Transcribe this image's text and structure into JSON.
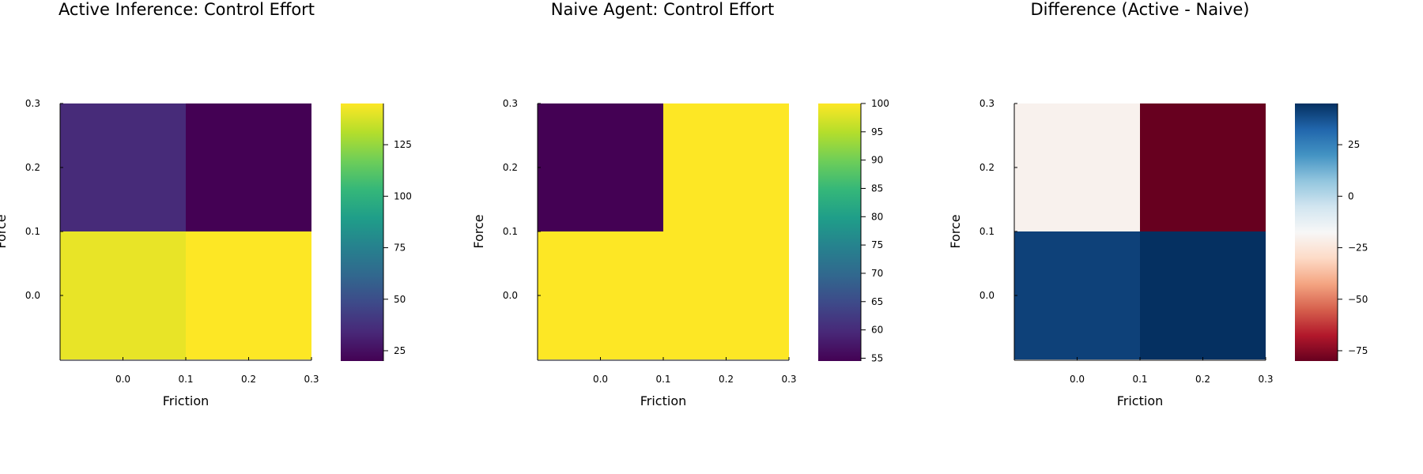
{
  "chart_data": [
    {
      "type": "heatmap",
      "title": "Active Inference: Control Effort",
      "xlabel": "Friction",
      "ylabel": "Force",
      "x_categories": [
        0.0,
        0.2
      ],
      "y_categories": [
        0.0,
        0.2
      ],
      "x_ticks": [
        "0.0",
        "0.1",
        "0.2",
        "0.3"
      ],
      "y_ticks": [
        "0.0",
        "0.1",
        "0.2",
        "0.3"
      ],
      "xlim": [
        -0.1,
        0.3
      ],
      "ylim": [
        -0.1,
        0.3
      ],
      "values": [
        [
          141,
          145
        ],
        [
          35,
          20
        ]
      ],
      "colormap": "viridis",
      "colorbar_range": [
        20,
        145
      ],
      "colorbar_ticks": [
        "25",
        "50",
        "75",
        "100",
        "125"
      ],
      "colorbar_tick_values": [
        25,
        50,
        75,
        100,
        125
      ]
    },
    {
      "type": "heatmap",
      "title": "Naive Agent: Control Effort",
      "xlabel": "Friction",
      "ylabel": "Force",
      "x_categories": [
        0.0,
        0.2
      ],
      "y_categories": [
        0.0,
        0.2
      ],
      "x_ticks": [
        "0.0",
        "0.1",
        "0.2",
        "0.3"
      ],
      "y_ticks": [
        "0.0",
        "0.1",
        "0.2",
        "0.3"
      ],
      "xlim": [
        -0.1,
        0.3
      ],
      "ylim": [
        -0.1,
        0.3
      ],
      "values": [
        [
          100,
          100
        ],
        [
          54.5,
          100
        ]
      ],
      "colormap": "viridis",
      "colorbar_range": [
        54.5,
        100
      ],
      "colorbar_ticks": [
        "55",
        "60",
        "65",
        "70",
        "75",
        "80",
        "85",
        "90",
        "95",
        "100"
      ],
      "colorbar_tick_values": [
        55,
        60,
        65,
        70,
        75,
        80,
        85,
        90,
        95,
        100
      ]
    },
    {
      "type": "heatmap",
      "title": "Difference (Active - Naive)",
      "xlabel": "Friction",
      "ylabel": "Force",
      "x_categories": [
        0.0,
        0.2
      ],
      "y_categories": [
        0.0,
        0.2
      ],
      "x_ticks": [
        "0.0",
        "0.1",
        "0.2",
        "0.3"
      ],
      "y_ticks": [
        "0.0",
        "0.1",
        "0.2",
        "0.3"
      ],
      "xlim": [
        -0.1,
        0.3
      ],
      "ylim": [
        -0.1,
        0.3
      ],
      "values": [
        [
          41,
          45
        ],
        [
          -20,
          -80
        ]
      ],
      "colormap": "RdBu",
      "colorbar_range": [
        -80,
        45
      ],
      "colorbar_ticks": [
        "−75",
        "−50",
        "−25",
        "0",
        "25"
      ],
      "colorbar_tick_values": [
        -75,
        -50,
        -25,
        0,
        25
      ]
    }
  ]
}
